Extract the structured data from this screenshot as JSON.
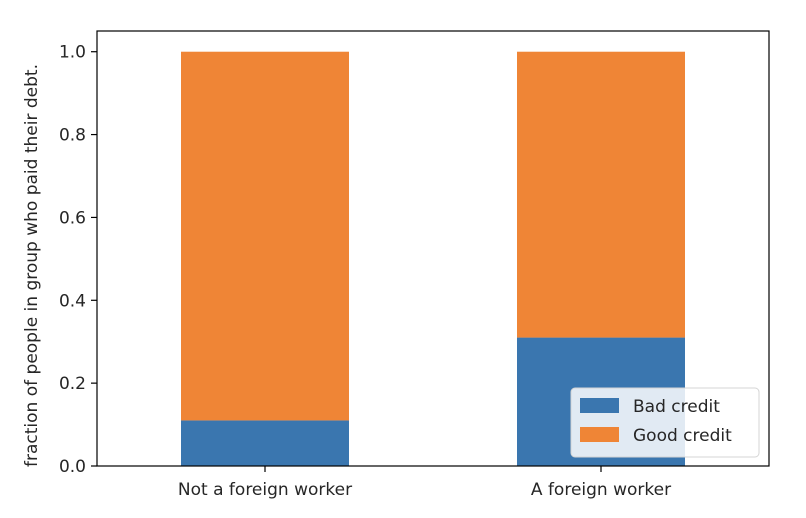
{
  "chart_data": {
    "type": "bar",
    "stacked": true,
    "categories": [
      "Not a foreign worker",
      "A foreign worker"
    ],
    "series": [
      {
        "name": "Bad credit",
        "values": [
          0.11,
          0.31
        ],
        "color": "#3a76af"
      },
      {
        "name": "Good credit",
        "values": [
          0.89,
          0.69
        ],
        "color": "#ef8536"
      }
    ],
    "ylabel": "fraction of people in group who paid their debt.",
    "xlabel": "",
    "ylim": [
      0,
      1.05
    ],
    "yticks": [
      "0.0",
      "0.2",
      "0.4",
      "0.6",
      "0.8",
      "1.0"
    ],
    "grid": false,
    "legend_position": "lower-right"
  }
}
